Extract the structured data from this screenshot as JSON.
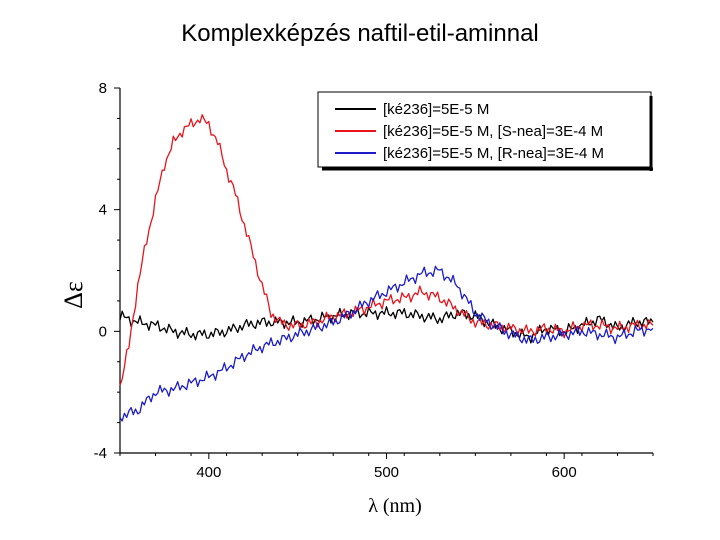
{
  "slide": {
    "title": "Komplexképzés naftil-etil-aminnal"
  },
  "chart_data": {
    "type": "line",
    "title": "Komplexképzés naftil-etil-aminnal",
    "xlabel": "λ (nm)",
    "ylabel": "Δε",
    "xlim": [
      350,
      650
    ],
    "ylim": [
      -4,
      8
    ],
    "xticks": [
      400,
      500,
      600
    ],
    "xtick_labels": [
      "400",
      "500",
      "600"
    ],
    "yticks": [
      -4,
      0,
      4,
      8
    ],
    "ytick_labels": [
      "-4",
      "0",
      "4",
      "8"
    ],
    "legend_position": "top-right",
    "series": [
      {
        "name": "[ké236]=5E-5 M",
        "color": "#000000",
        "x": [
          350,
          360,
          370,
          380,
          390,
          400,
          410,
          420,
          430,
          440,
          450,
          460,
          470,
          480,
          490,
          500,
          510,
          520,
          530,
          540,
          550,
          560,
          570,
          580,
          590,
          600,
          610,
          620,
          630,
          640,
          650
        ],
        "y": [
          0.5,
          0.3,
          0.2,
          0.0,
          -0.1,
          -0.1,
          0.0,
          0.2,
          0.3,
          0.3,
          0.3,
          0.4,
          0.5,
          0.6,
          0.6,
          0.6,
          0.6,
          0.5,
          0.4,
          0.6,
          0.5,
          0.2,
          0.0,
          -0.2,
          0.1,
          0.0,
          0.2,
          0.4,
          0.1,
          0.3,
          0.3
        ]
      },
      {
        "name": "[ké236]=5E-5 M, [S-nea]=3E-4 M",
        "color": "#e8141c",
        "x": [
          350,
          355,
          360,
          365,
          370,
          375,
          380,
          385,
          390,
          395,
          400,
          405,
          410,
          415,
          420,
          425,
          430,
          435,
          440,
          445,
          450,
          460,
          470,
          480,
          490,
          500,
          510,
          520,
          530,
          540,
          550,
          560,
          570,
          580,
          590,
          600,
          610,
          620,
          630,
          640,
          650
        ],
        "y": [
          -1.8,
          -0.5,
          1.5,
          3.0,
          4.3,
          5.5,
          6.2,
          6.6,
          6.8,
          7.0,
          6.8,
          6.2,
          5.3,
          4.5,
          3.5,
          2.5,
          1.5,
          0.6,
          0.3,
          0.2,
          0.2,
          0.3,
          0.5,
          0.6,
          0.8,
          1.0,
          1.1,
          1.3,
          1.1,
          0.7,
          0.3,
          0.2,
          0.1,
          0.0,
          0.1,
          0.0,
          0.2,
          0.2,
          0.1,
          0.2,
          0.2
        ]
      },
      {
        "name": "[ké236]=5E-5 M, [R-nea]=3E-4 M",
        "color": "#1c1cc8",
        "x": [
          350,
          360,
          370,
          380,
          390,
          400,
          410,
          420,
          430,
          440,
          450,
          460,
          470,
          480,
          490,
          500,
          510,
          520,
          530,
          540,
          550,
          560,
          570,
          580,
          590,
          600,
          610,
          620,
          630,
          640,
          650
        ],
        "y": [
          -2.8,
          -2.6,
          -2.0,
          -1.9,
          -1.7,
          -1.5,
          -1.2,
          -0.8,
          -0.5,
          -0.3,
          -0.1,
          0.1,
          0.3,
          0.6,
          1.0,
          1.3,
          1.6,
          1.9,
          2.0,
          1.5,
          0.6,
          0.2,
          -0.1,
          -0.3,
          -0.2,
          -0.1,
          0.0,
          -0.1,
          -0.2,
          0.0,
          0.1
        ]
      }
    ]
  }
}
